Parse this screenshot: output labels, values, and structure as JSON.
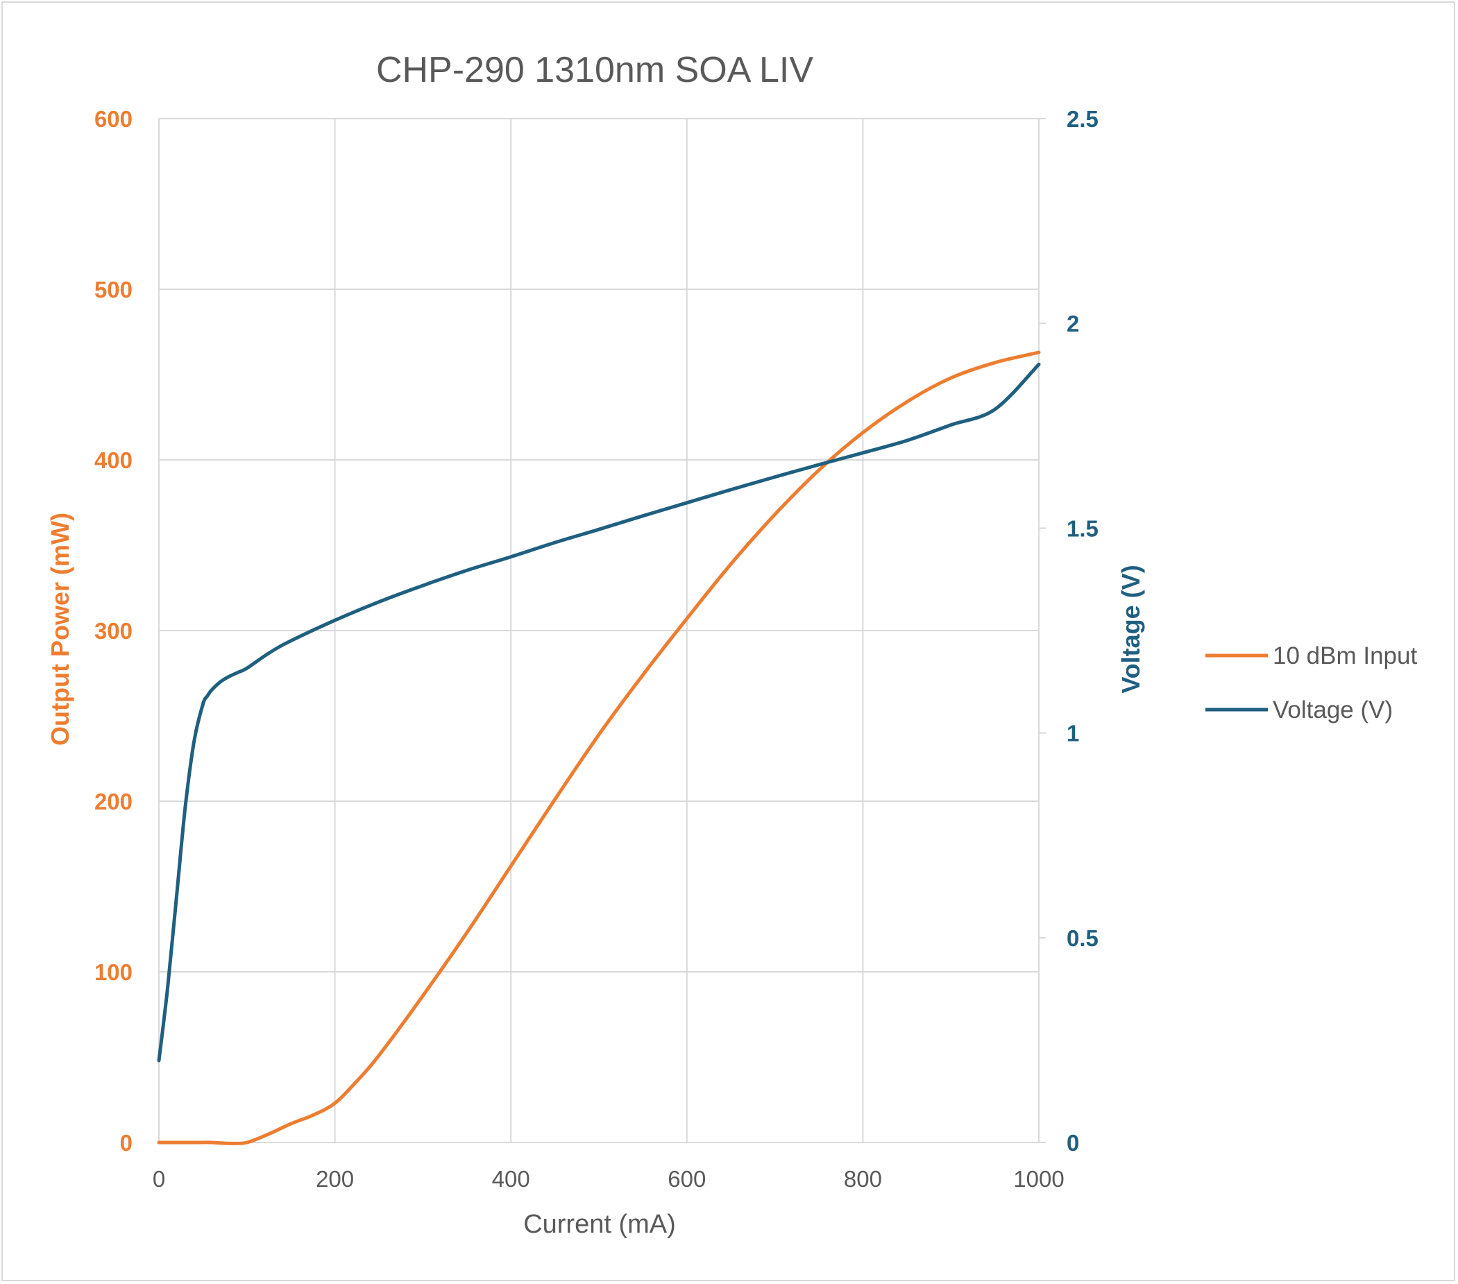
{
  "chart_data": {
    "type": "line",
    "title": "CHP-290 1310nm SOA LIV",
    "xlabel": "Current (mA)",
    "ylabel": "Output Power (mW)",
    "y2label": "Voltage (V)",
    "xlim": [
      0,
      1000
    ],
    "ylim": [
      0,
      600
    ],
    "y2lim": [
      0,
      2.5
    ],
    "x_ticks": [
      0,
      200,
      400,
      600,
      800,
      1000
    ],
    "y_ticks": [
      0,
      100,
      200,
      300,
      400,
      500,
      600
    ],
    "y2_ticks": [
      0,
      0.5,
      1,
      1.5,
      2,
      2.5
    ],
    "grid": true,
    "legend_position": "right",
    "colors": {
      "power": "#ED7D31",
      "voltage": "#1F5F80",
      "grid": "#d9d9d9",
      "text": "#595959"
    },
    "series": [
      {
        "name": "10 dBm Input",
        "axis": "left",
        "x": [
          0,
          20,
          40,
          60,
          80,
          100,
          125,
          150,
          175,
          200,
          225,
          250,
          300,
          350,
          400,
          450,
          500,
          550,
          600,
          650,
          700,
          750,
          800,
          850,
          900,
          950,
          1000
        ],
        "values": [
          0,
          0,
          0,
          0,
          -0.5,
          0,
          5,
          11,
          16,
          23,
          36,
          51,
          86,
          123,
          162,
          201,
          239,
          274,
          307,
          339,
          368,
          394,
          416,
          434,
          448,
          457,
          463
        ]
      },
      {
        "name": "Voltage (V)",
        "axis": "right",
        "x": [
          0,
          10,
          20,
          30,
          40,
          50,
          55,
          60,
          70,
          80,
          90,
          100,
          125,
          150,
          200,
          250,
          300,
          350,
          400,
          450,
          500,
          550,
          600,
          650,
          700,
          750,
          800,
          850,
          900,
          950,
          1000
        ],
        "values": [
          0.2,
          0.38,
          0.6,
          0.82,
          0.98,
          1.07,
          1.09,
          1.105,
          1.125,
          1.138,
          1.148,
          1.158,
          1.195,
          1.225,
          1.275,
          1.32,
          1.36,
          1.397,
          1.43,
          1.465,
          1.497,
          1.53,
          1.562,
          1.594,
          1.625,
          1.655,
          1.684,
          1.714,
          1.752,
          1.79,
          1.9
        ]
      }
    ]
  }
}
